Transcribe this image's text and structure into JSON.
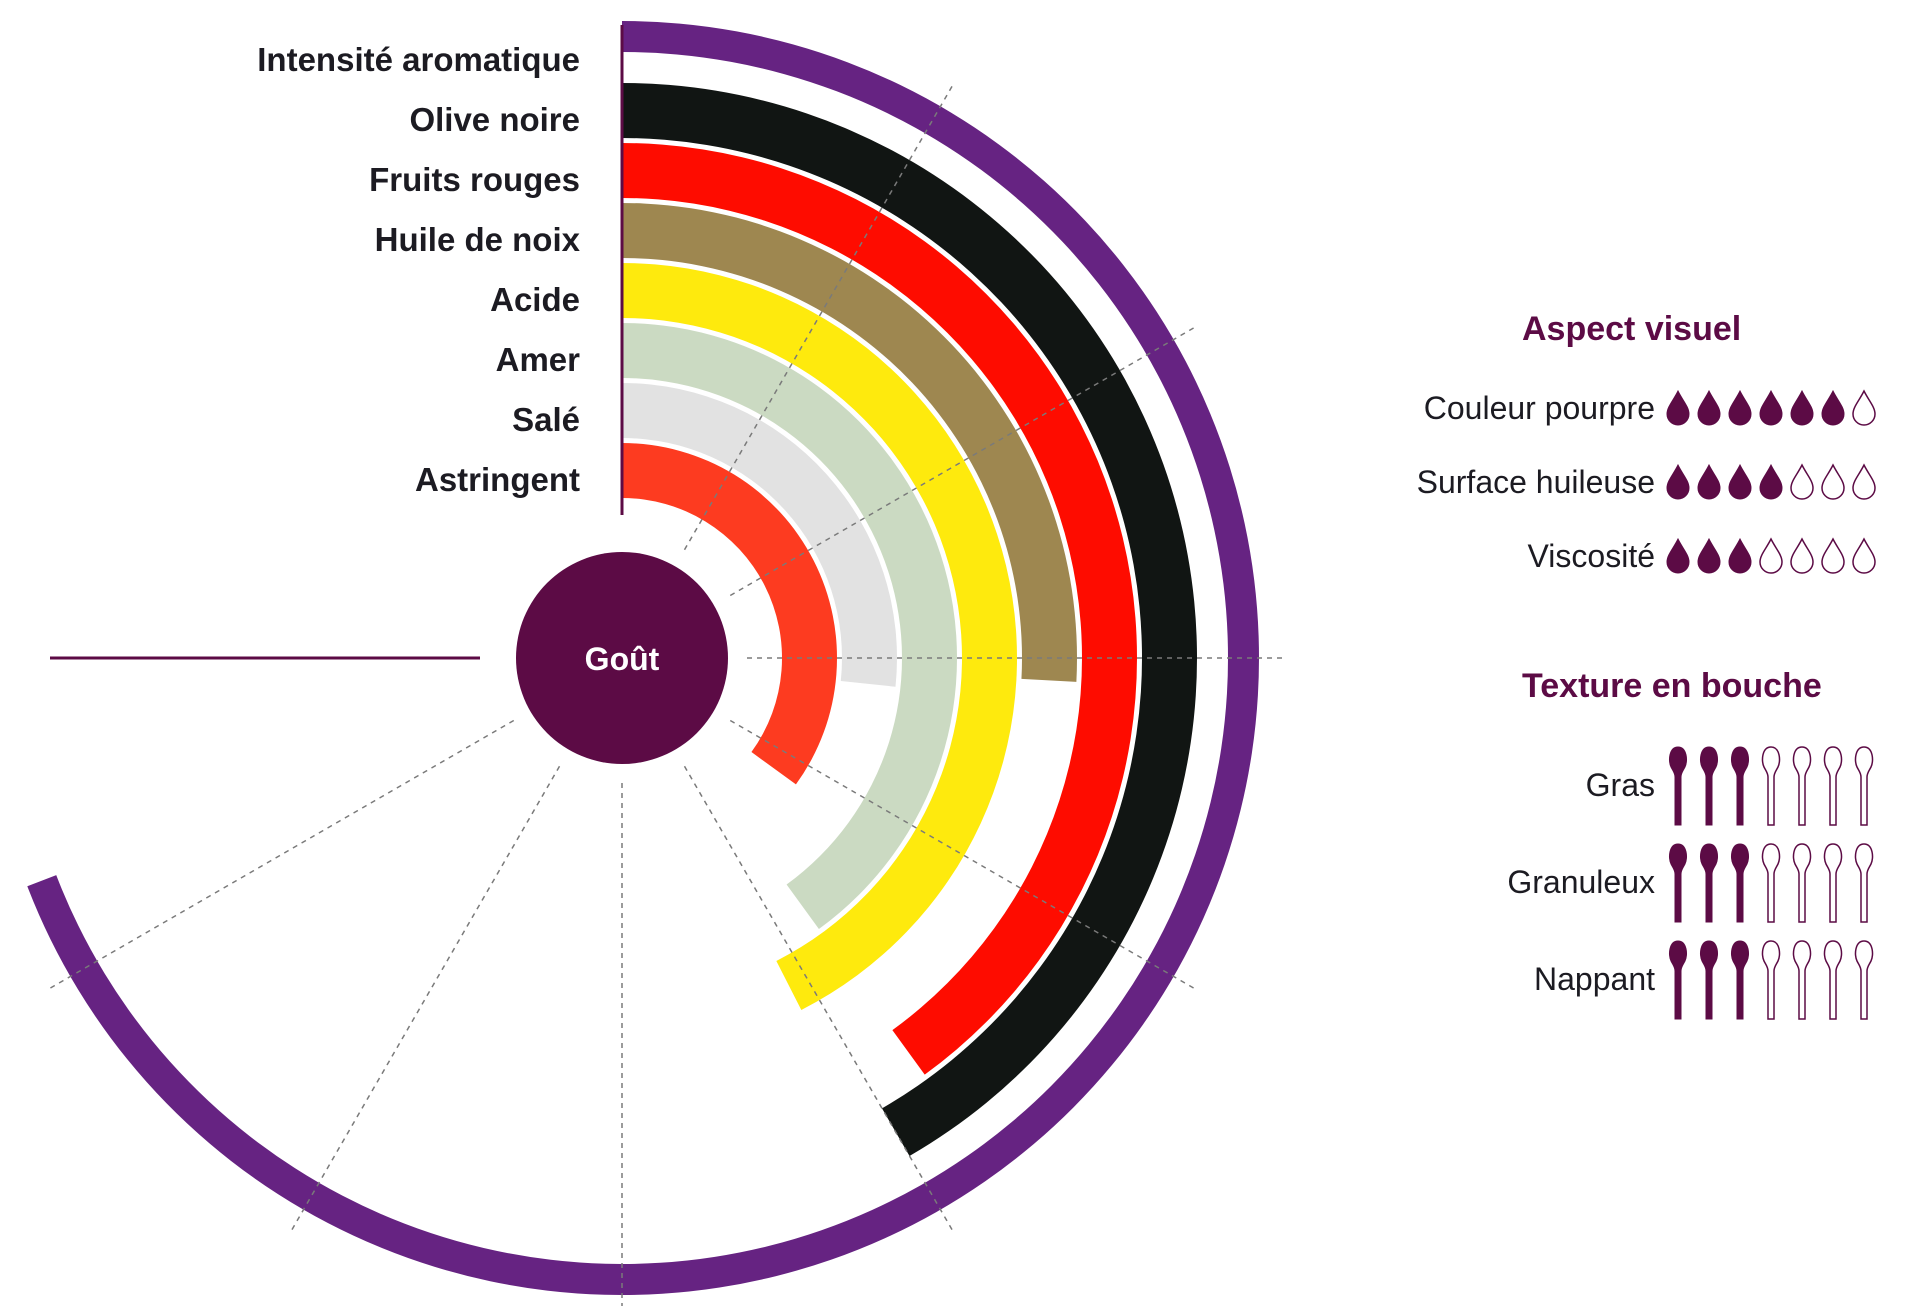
{
  "colors": {
    "accent": "#5c0b45",
    "purple_ring": "#662382",
    "text": "#1c1b22"
  },
  "chart_data": {
    "type": "radial-bar",
    "center_label": "Goût",
    "max_value": 10,
    "series": [
      {
        "name": "Intensité aromatique",
        "value": 8.3,
        "color": "#662382"
      },
      {
        "name": "Olive noire",
        "value": 5.0,
        "color": "#111513"
      },
      {
        "name": "Fruits rouges",
        "value": 4.8,
        "color": "#fe0c00"
      },
      {
        "name": "Huile de noix",
        "value": 3.1,
        "color": "#9e8750"
      },
      {
        "name": "Acide",
        "value": 5.1,
        "color": "#feea0d"
      },
      {
        "name": "Amer",
        "value": 4.8,
        "color": "#cbdac2"
      },
      {
        "name": "Salé",
        "value": 3.2,
        "color": "#e2e2e2"
      },
      {
        "name": "Astringent",
        "value": 4.2,
        "color": "#fd3b20"
      }
    ]
  },
  "aspect_visuel": {
    "title": "Aspect visuel",
    "icon": "drop-icon",
    "max": 7,
    "rows": [
      {
        "label": "Couleur pourpre",
        "value": 6
      },
      {
        "label": "Surface huileuse",
        "value": 4
      },
      {
        "label": "Viscosité",
        "value": 3
      }
    ]
  },
  "texture": {
    "title": "Texture en bouche",
    "icon": "spoon-icon",
    "max": 7,
    "rows": [
      {
        "label": "Gras",
        "value": 3
      },
      {
        "label": "Granuleux",
        "value": 3
      },
      {
        "label": "Nappant",
        "value": 3
      }
    ]
  }
}
